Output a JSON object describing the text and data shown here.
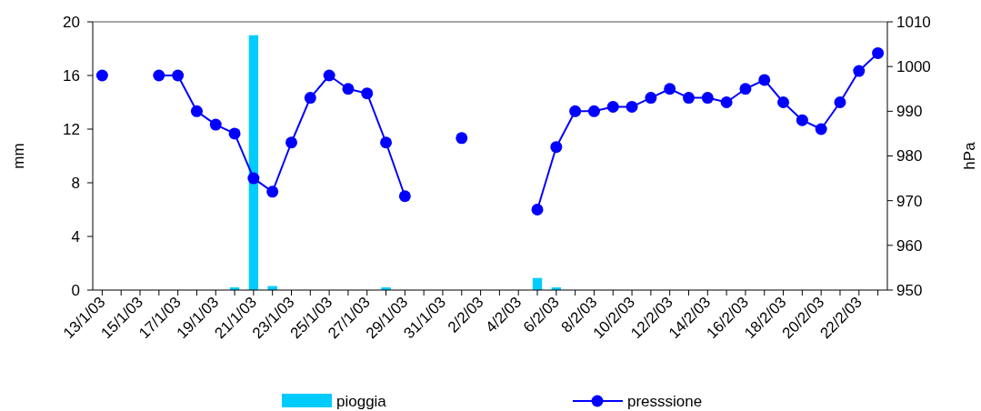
{
  "chart_data": {
    "type": "bar",
    "categories": [
      "13/1/03",
      null,
      "15/1/03",
      null,
      "17/1/03",
      null,
      "19/1/03",
      null,
      "21/1/03",
      null,
      "23/1/03",
      null,
      "25/1/03",
      null,
      "27/1/03",
      null,
      "29/1/03",
      null,
      "31/1/03",
      null,
      "2/2/03",
      null,
      "4/2/03",
      null,
      "6/2/03",
      null,
      "8/2/03",
      null,
      "10/2/03",
      null,
      "12/2/03",
      null,
      "14/2/03",
      null,
      "16/2/03",
      null,
      "18/2/03",
      null,
      "20/2/03",
      null,
      "22/2/03",
      null
    ],
    "ylabel": "mm",
    "y2label": "hPa",
    "ylim": [
      0,
      20
    ],
    "yticks": [
      0,
      4,
      8,
      12,
      16,
      20
    ],
    "y2lim": [
      950,
      1010
    ],
    "y2ticks": [
      950,
      960,
      970,
      980,
      990,
      1000,
      1010
    ],
    "series": [
      {
        "name": "pioggia",
        "color": "#00ccff",
        "values": [
          0,
          0,
          0,
          0,
          0,
          0,
          0,
          0.2,
          19,
          0.3,
          0,
          0,
          0,
          0,
          0,
          0.2,
          0,
          0,
          0,
          0,
          0,
          0,
          0,
          0.9,
          0.2,
          0,
          0,
          0,
          0,
          0,
          0,
          0,
          0,
          0,
          0,
          0,
          0,
          0,
          0,
          0,
          0,
          0
        ]
      },
      {
        "name": "presssione",
        "type": "line",
        "axis": "y2",
        "color": "#0000ff",
        "marker": "circle",
        "values": [
          998,
          null,
          null,
          998,
          998,
          990,
          987,
          985,
          975,
          972,
          983,
          993,
          998,
          995,
          994,
          983,
          971,
          null,
          null,
          984,
          null,
          null,
          null,
          968,
          982,
          990,
          990,
          991,
          991,
          993,
          995,
          993,
          993,
          992,
          995,
          997,
          992,
          988,
          986,
          992,
          999,
          1003
        ]
      }
    ],
    "legend": "bottom",
    "grid": false
  }
}
